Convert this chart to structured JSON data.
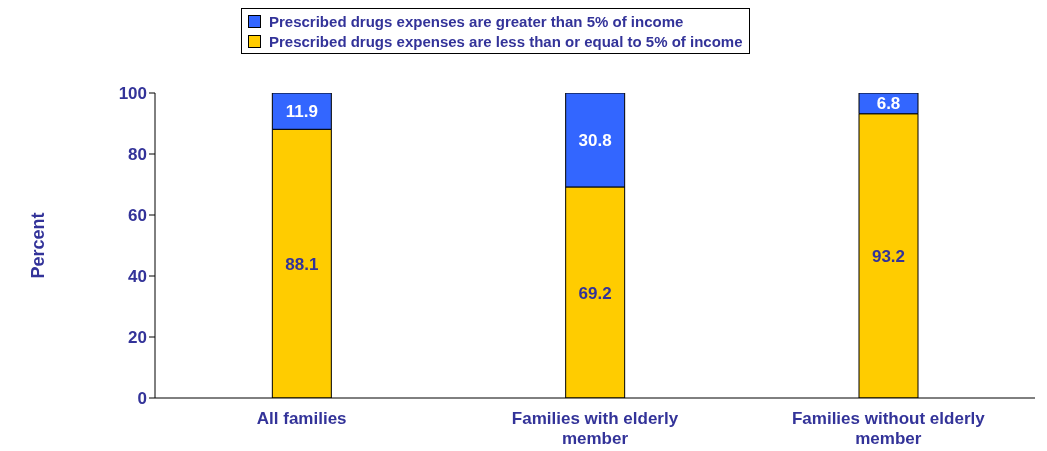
{
  "chart_data": {
    "type": "bar",
    "stacked": true,
    "ylabel": "Percent",
    "categories": [
      "All families",
      "Families with elderly member",
      "Families without elderly member"
    ],
    "series": [
      {
        "name": "Prescribed drugs expenses are less than or equal to 5% of income",
        "color": "#ffcc00",
        "values": [
          88.1,
          69.2,
          93.2
        ]
      },
      {
        "name": "Prescribed drugs expenses are greater than 5% of income",
        "color": "#3366ff",
        "values": [
          11.9,
          30.8,
          6.8
        ]
      }
    ],
    "ylim": [
      0,
      100
    ],
    "yticks": [
      0,
      20,
      40,
      60,
      80,
      100
    ],
    "grid": false,
    "legend": "top",
    "data_labels": true
  }
}
